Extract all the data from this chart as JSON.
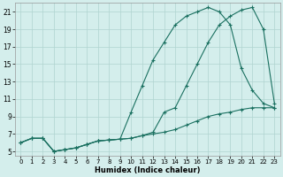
{
  "xlabel": "Humidex (Indice chaleur)",
  "background_color": "#d4eeec",
  "grid_color": "#b0d4d0",
  "line_color": "#1a7060",
  "xlim": [
    -0.5,
    23.5
  ],
  "ylim": [
    4.5,
    22
  ],
  "xticks": [
    0,
    1,
    2,
    3,
    4,
    5,
    6,
    7,
    8,
    9,
    10,
    11,
    12,
    13,
    14,
    15,
    16,
    17,
    18,
    19,
    20,
    21,
    22,
    23
  ],
  "yticks": [
    5,
    7,
    9,
    11,
    13,
    15,
    17,
    19,
    21
  ],
  "series": [
    {
      "x": [
        0,
        1,
        2,
        3,
        4,
        5,
        6,
        7,
        8,
        9,
        10,
        11,
        12,
        13,
        14,
        15,
        16,
        17,
        18,
        19,
        20,
        21,
        22,
        23
      ],
      "y": [
        6.0,
        6.5,
        6.5,
        5.0,
        5.2,
        5.4,
        5.8,
        6.2,
        6.3,
        6.4,
        9.5,
        12.5,
        15.5,
        17.5,
        19.5,
        20.5,
        21.0,
        21.5,
        21.0,
        19.5,
        14.5,
        12.0,
        10.5,
        10.0
      ]
    },
    {
      "x": [
        0,
        1,
        2,
        3,
        4,
        5,
        6,
        7,
        8,
        9,
        10,
        11,
        12,
        13,
        14,
        15,
        16,
        17,
        18,
        19,
        20,
        21,
        22,
        23
      ],
      "y": [
        6.0,
        6.5,
        6.5,
        5.0,
        5.2,
        5.4,
        5.8,
        6.2,
        6.3,
        6.4,
        6.5,
        6.8,
        7.2,
        9.5,
        10.0,
        12.5,
        15.0,
        17.5,
        19.5,
        20.5,
        21.2,
        21.5,
        19.0,
        10.5
      ]
    },
    {
      "x": [
        0,
        1,
        2,
        3,
        4,
        5,
        6,
        7,
        8,
        9,
        10,
        11,
        12,
        13,
        14,
        15,
        16,
        17,
        18,
        19,
        20,
        21,
        22,
        23
      ],
      "y": [
        6.0,
        6.5,
        6.5,
        5.0,
        5.2,
        5.4,
        5.8,
        6.2,
        6.3,
        6.4,
        6.5,
        6.8,
        7.0,
        7.2,
        7.5,
        8.0,
        8.5,
        9.0,
        9.3,
        9.5,
        9.8,
        10.0,
        10.0,
        10.0
      ]
    }
  ]
}
